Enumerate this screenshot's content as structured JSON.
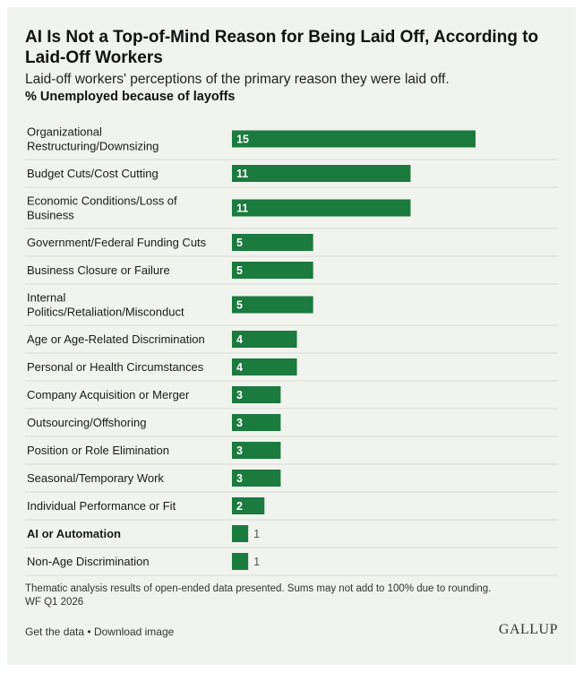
{
  "header": {
    "title": "AI Is Not a Top-of-Mind Reason for Being Laid Off, According to Laid-Off Workers",
    "subtitle": "Laid-off workers' perceptions of the primary reason they were laid off.",
    "metric": "% Unemployed because of layoffs"
  },
  "chart_data": {
    "type": "bar",
    "orientation": "horizontal",
    "categories": [
      [
        "Organizational",
        "Restructuring/Downsizing"
      ],
      [
        "Budget Cuts/Cost Cutting"
      ],
      [
        "Economic Conditions/Loss of",
        "Business"
      ],
      [
        "Government/Federal Funding Cuts"
      ],
      [
        "Business Closure or Failure"
      ],
      [
        "Internal",
        "Politics/Retaliation/Misconduct"
      ],
      [
        "Age or Age-Related Discrimination"
      ],
      [
        "Personal or Health Circumstances"
      ],
      [
        "Company Acquisition or Merger"
      ],
      [
        "Outsourcing/Offshoring"
      ],
      [
        "Position or Role Elimination"
      ],
      [
        "Seasonal/Temporary Work"
      ],
      [
        "Individual Performance or Fit"
      ],
      [
        "AI or Automation"
      ],
      [
        "Non-Age Discrimination"
      ]
    ],
    "values": [
      15,
      11,
      11,
      5,
      5,
      5,
      4,
      4,
      3,
      3,
      3,
      3,
      2,
      1,
      1
    ],
    "highlight_index": 13,
    "xlim": [
      0,
      15
    ],
    "grid": false,
    "bar_color": "#1b7a3e"
  },
  "footer": {
    "note": "Thematic analysis results of open-ended data presented. Sums may not add to 100% due to rounding.",
    "source": "WF Q1 2026",
    "get_data": "Get the data",
    "separator": "•",
    "download": "Download image",
    "brand": "GALLUP"
  },
  "colors": {
    "background": "#f1f3ee",
    "bar": "#1b7a3e",
    "divider": "#d6d8d2"
  }
}
